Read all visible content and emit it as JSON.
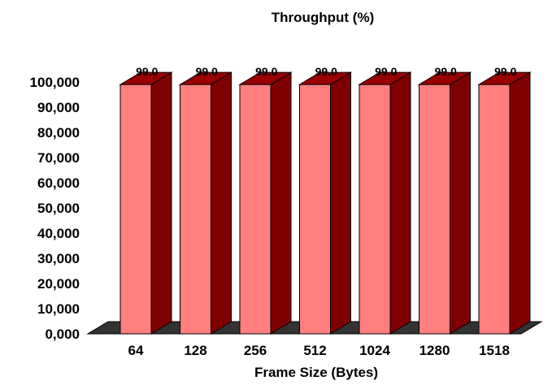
{
  "chart_data": {
    "type": "bar",
    "title": "Throughput (%)",
    "xlabel": "Frame Size (Bytes)",
    "ylabel": "",
    "categories": [
      "64",
      "128",
      "256",
      "512",
      "1024",
      "1280",
      "1518"
    ],
    "series": [
      {
        "values": [
          99.0,
          99.0,
          99.0,
          99.0,
          99.0,
          99.0,
          99.0
        ]
      }
    ],
    "data_labels": [
      "99.0",
      "99.0",
      "99.0",
      "99.0",
      "99.0",
      "99.0",
      "99.0"
    ],
    "y_tick_labels": [
      "0,000",
      "10,000",
      "20,000",
      "30,000",
      "40,000",
      "50,000",
      "60,000",
      "70,000",
      "80,000",
      "90,000",
      "100,000"
    ],
    "ylim": [
      0,
      100
    ],
    "grid": false,
    "legend": "none",
    "style": "3d",
    "colors": {
      "bar_front": "#ff7f7f",
      "bar_side": "#7f0000",
      "bar_top": "#990000",
      "floor": "#333333"
    }
  }
}
